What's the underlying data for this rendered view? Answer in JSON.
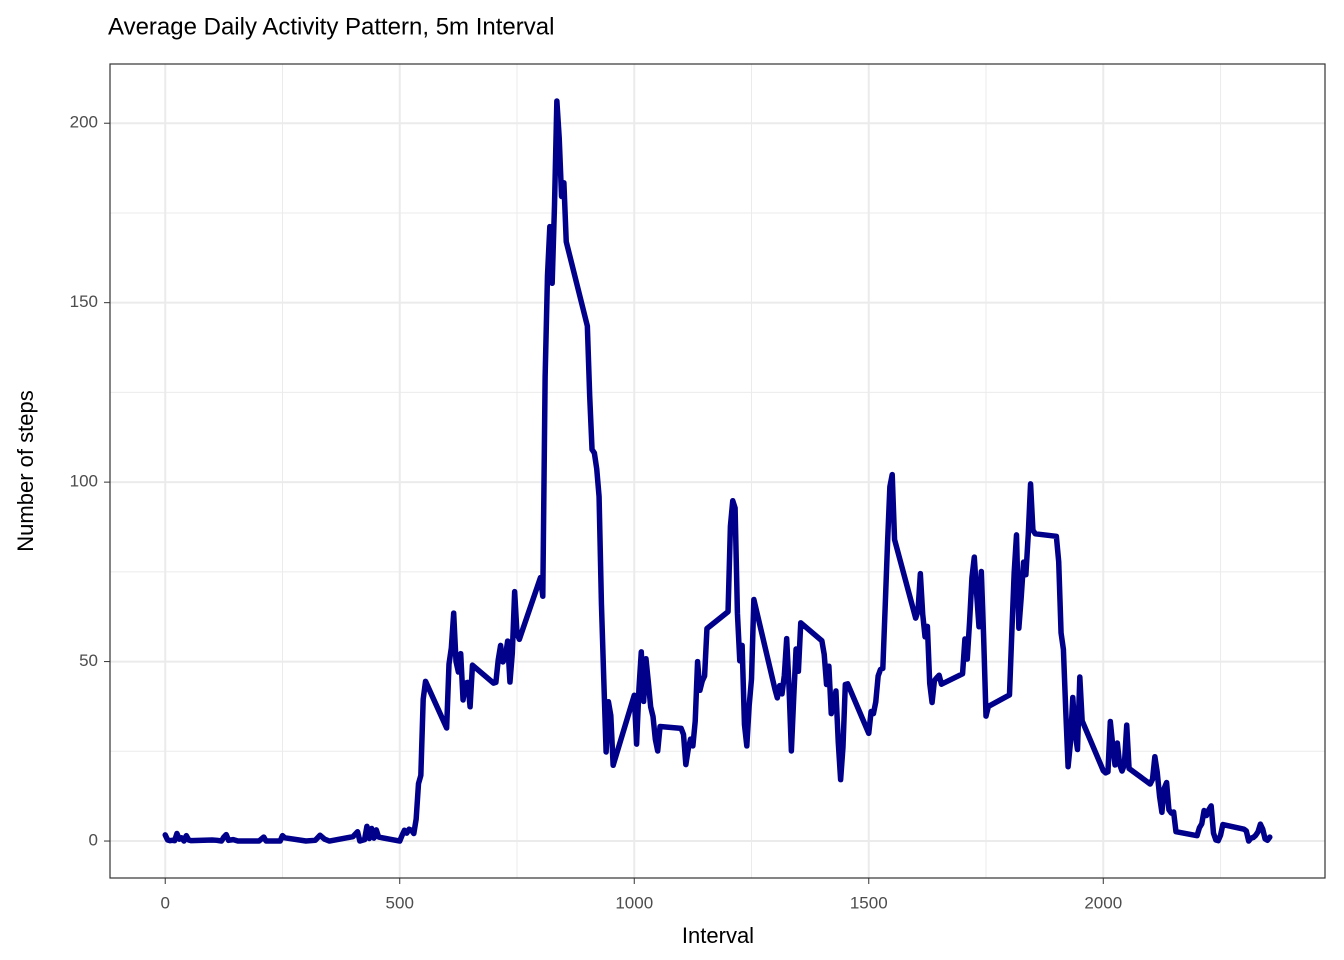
{
  "chart_data": {
    "type": "line",
    "title": "Average Daily Activity Pattern, 5m Interval",
    "x_label": "Interval",
    "y_label": "Number of steps",
    "xlim": [
      -117.75,
      2472.75
    ],
    "ylim": [
      -10.3,
      216.5
    ],
    "xticks": [
      0,
      500,
      1000,
      1500,
      2000
    ],
    "yticks": [
      0,
      50,
      100,
      150,
      200
    ],
    "x_minor_ticks": [
      250,
      750,
      1250,
      1750,
      2250
    ],
    "y_minor_ticks": [
      25,
      75,
      125,
      175
    ],
    "grid": true,
    "color": "#00008b",
    "x": [
      0,
      5,
      10,
      15,
      20,
      25,
      30,
      35,
      40,
      45,
      50,
      55,
      100,
      110,
      120,
      125,
      130,
      135,
      145,
      155,
      200,
      210,
      215,
      230,
      245,
      250,
      255,
      300,
      320,
      330,
      340,
      350,
      400,
      410,
      415,
      425,
      430,
      435,
      440,
      445,
      450,
      455,
      500,
      505,
      510,
      515,
      520,
      525,
      530,
      535,
      540,
      545,
      550,
      555,
      600,
      605,
      610,
      615,
      620,
      625,
      630,
      635,
      640,
      645,
      650,
      655,
      700,
      705,
      710,
      715,
      720,
      725,
      730,
      735,
      740,
      745,
      750,
      755,
      800,
      805,
      810,
      815,
      820,
      825,
      830,
      835,
      840,
      845,
      850,
      855,
      900,
      905,
      910,
      915,
      920,
      925,
      930,
      935,
      940,
      945,
      950,
      955,
      1000,
      1005,
      1010,
      1015,
      1020,
      1025,
      1030,
      1035,
      1040,
      1045,
      1050,
      1055,
      1100,
      1105,
      1110,
      1115,
      1120,
      1125,
      1130,
      1135,
      1140,
      1145,
      1150,
      1155,
      1200,
      1205,
      1210,
      1215,
      1220,
      1225,
      1230,
      1235,
      1240,
      1245,
      1250,
      1255,
      1300,
      1305,
      1310,
      1315,
      1320,
      1325,
      1330,
      1335,
      1340,
      1345,
      1350,
      1355,
      1400,
      1405,
      1410,
      1415,
      1420,
      1425,
      1430,
      1435,
      1440,
      1445,
      1450,
      1455,
      1500,
      1505,
      1510,
      1515,
      1520,
      1525,
      1530,
      1535,
      1540,
      1545,
      1550,
      1555,
      1600,
      1605,
      1610,
      1615,
      1620,
      1625,
      1630,
      1635,
      1640,
      1645,
      1650,
      1655,
      1700,
      1705,
      1710,
      1715,
      1720,
      1725,
      1730,
      1735,
      1740,
      1745,
      1750,
      1755,
      1800,
      1805,
      1810,
      1815,
      1820,
      1825,
      1830,
      1835,
      1840,
      1845,
      1850,
      1855,
      1900,
      1905,
      1910,
      1915,
      1920,
      1925,
      1930,
      1935,
      1940,
      1945,
      1950,
      1955,
      2000,
      2005,
      2010,
      2015,
      2020,
      2025,
      2030,
      2035,
      2040,
      2045,
      2050,
      2055,
      2100,
      2105,
      2110,
      2115,
      2120,
      2125,
      2130,
      2135,
      2140,
      2145,
      2150,
      2155,
      2200,
      2205,
      2210,
      2215,
      2220,
      2225,
      2230,
      2235,
      2240,
      2245,
      2250,
      2255,
      2300,
      2305,
      2310,
      2315,
      2320,
      2325,
      2330,
      2335,
      2340,
      2345,
      2350,
      2355
    ],
    "values": [
      1.7,
      0.3,
      0.1,
      0.2,
      0.1,
      2.1,
      0.5,
      0.9,
      0,
      1.5,
      0.3,
      0.1,
      0.3,
      0.2,
      0,
      1.1,
      1.8,
      0.2,
      0.4,
      0,
      0,
      1.1,
      0,
      0,
      0,
      1.5,
      0.9,
      0,
      0.2,
      1.6,
      0.5,
      0,
      1.2,
      2.6,
      0,
      0.4,
      4.1,
      0.7,
      3.5,
      0.8,
      3.1,
      1.1,
      0,
      1.6,
      3.0,
      2.2,
      3.3,
      3.0,
      2.1,
      6.1,
      16.0,
      18.3,
      39.5,
      44.5,
      31.5,
      49.3,
      53.8,
      63.5,
      50.0,
      47.1,
      52.2,
      39.3,
      44.0,
      44.2,
      37.4,
      49.0,
      44.0,
      44.2,
      50.5,
      54.5,
      49.9,
      51.0,
      55.7,
      44.3,
      52.3,
      69.5,
      57.8,
      56.2,
      73.4,
      68.2,
      129.4,
      157.5,
      171.2,
      155.4,
      177.3,
      206.2,
      195.9,
      179.6,
      183.4,
      167.0,
      143.5,
      124.0,
      109.1,
      108.1,
      103.7,
      96.0,
      66.2,
      45.2,
      24.8,
      38.8,
      35.0,
      21.1,
      40.6,
      27.0,
      42.4,
      52.7,
      38.9,
      50.8,
      44.3,
      37.4,
      34.7,
      28.3,
      25.1,
      31.9,
      31.4,
      29.7,
      21.3,
      25.5,
      28.4,
      26.5,
      33.4,
      50.0,
      42.0,
      44.6,
      46.0,
      59.2,
      63.9,
      87.7,
      94.8,
      92.8,
      63.4,
      50.2,
      54.5,
      32.4,
      26.5,
      37.7,
      45.1,
      67.3,
      42.3,
      39.9,
      43.3,
      41.0,
      46.2,
      56.4,
      42.8,
      25.1,
      40.0,
      53.5,
      47.3,
      60.8,
      55.8,
      52.0,
      43.6,
      48.7,
      35.5,
      37.5,
      41.8,
      27.5,
      17.1,
      26.1,
      43.6,
      43.8,
      30.0,
      36.1,
      35.5,
      38.8,
      46.0,
      47.8,
      48.1,
      65.3,
      82.9,
      98.7,
      102.1,
      84.0,
      62.1,
      64.1,
      74.5,
      63.2,
      56.9,
      59.8,
      43.9,
      38.6,
      44.7,
      45.5,
      46.2,
      43.7,
      46.6,
      56.3,
      50.7,
      61.2,
      73.4,
      79.1,
      68.9,
      59.7,
      75.1,
      56.5,
      34.8,
      37.5,
      40.7,
      58.0,
      74.7,
      85.3,
      59.3,
      67.8,
      77.7,
      74.2,
      85.3,
      99.5,
      86.6,
      85.6,
      84.9,
      77.8,
      58.0,
      53.4,
      36.3,
      20.7,
      27.4,
      40.0,
      30.2,
      25.5,
      45.7,
      33.5,
      19.6,
      19.0,
      19.3,
      33.3,
      26.8,
      21.2,
      27.3,
      21.3,
      19.5,
      21.3,
      32.3,
      20.2,
      15.9,
      17.2,
      23.5,
      19.2,
      12.5,
      8.0,
      14.7,
      16.3,
      8.7,
      7.8,
      8.1,
      2.6,
      1.5,
      3.7,
      4.8,
      8.5,
      7.1,
      8.7,
      9.8,
      2.2,
      0.3,
      0.1,
      1.6,
      4.6,
      3.3,
      2.8,
      0,
      0.8,
      1.0,
      1.6,
      2.6,
      4.7,
      3.3,
      0.6,
      0.2,
      1.1
    ]
  }
}
